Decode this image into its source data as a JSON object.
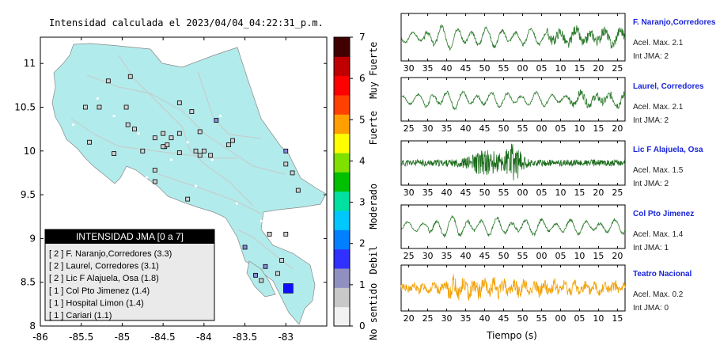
{
  "title": "Intensidad calculada el 2023/04/04_04:22:31_p.m.",
  "chart_data": [
    {
      "type": "map",
      "xlim": [
        -86,
        -82.5
      ],
      "ylim": [
        8,
        11.3
      ],
      "x_ticks": [
        "-86",
        "-85.5",
        "-85",
        "-84.5",
        "-84",
        "-83.5",
        "-83"
      ],
      "y_ticks": [
        "8",
        "8.5",
        "9",
        "9.5",
        "10",
        "10.5",
        "11"
      ],
      "colorbar": {
        "ticks": [
          "0",
          "1",
          "2",
          "3",
          "4",
          "5",
          "6",
          "7"
        ],
        "labels": [
          "No sentido",
          "Debil",
          "Moderado",
          "Fuerte",
          "Muy Fuerte"
        ],
        "colors": [
          "#f2f2f2",
          "#c8c8c8",
          "#9090c0",
          "#3030ff",
          "#0080ff",
          "#00c8ff",
          "#00e0a0",
          "#00c000",
          "#80e000",
          "#ffff00",
          "#ffa000",
          "#ff4000",
          "#ff0000",
          "#c00000",
          "#400000"
        ]
      },
      "stations": [
        {
          "lon": -82.97,
          "lat": 8.43,
          "intensity": 3
        },
        {
          "lon": -83.25,
          "lat": 8.68,
          "intensity": 2
        },
        {
          "lon": -83.37,
          "lat": 8.58,
          "intensity": 2
        },
        {
          "lon": -83.5,
          "lat": 8.9,
          "intensity": 2
        },
        {
          "lon": -83.0,
          "lat": 10.0,
          "intensity": 2
        },
        {
          "lon": -83.85,
          "lat": 10.35,
          "intensity": 2
        },
        {
          "lon": -82.92,
          "lat": 9.75,
          "intensity": 1
        },
        {
          "lon": -83.2,
          "lat": 9.05,
          "intensity": 1
        },
        {
          "lon": -83.3,
          "lat": 8.52,
          "intensity": 1
        },
        {
          "lon": -83.0,
          "lat": 9.85,
          "intensity": 1
        },
        {
          "lon": -84.0,
          "lat": 10.0,
          "intensity": 1
        },
        {
          "lon": -83.92,
          "lat": 9.95,
          "intensity": 1
        },
        {
          "lon": -84.2,
          "lat": 9.45,
          "intensity": 1
        },
        {
          "lon": -84.48,
          "lat": 10.05,
          "intensity": 1
        },
        {
          "lon": -84.3,
          "lat": 9.98,
          "intensity": 1
        },
        {
          "lon": -84.45,
          "lat": 10.07,
          "intensity": 1
        },
        {
          "lon": -84.1,
          "lat": 10.0,
          "intensity": 1
        },
        {
          "lon": -84.05,
          "lat": 10.22,
          "intensity": 1
        },
        {
          "lon": -84.05,
          "lat": 9.95,
          "intensity": 1
        },
        {
          "lon": -83.7,
          "lat": 10.07,
          "intensity": 1
        },
        {
          "lon": -83.65,
          "lat": 10.12,
          "intensity": 1
        },
        {
          "lon": -84.5,
          "lat": 10.05,
          "intensity": 1
        },
        {
          "lon": -84.3,
          "lat": 10.2,
          "intensity": 1
        },
        {
          "lon": -84.6,
          "lat": 10.15,
          "intensity": 1
        },
        {
          "lon": -84.5,
          "lat": 10.2,
          "intensity": 1
        },
        {
          "lon": -84.4,
          "lat": 10.15,
          "intensity": 1
        },
        {
          "lon": -84.75,
          "lat": 10.0,
          "intensity": 1
        },
        {
          "lon": -84.6,
          "lat": 9.78,
          "intensity": 1
        },
        {
          "lon": -84.93,
          "lat": 10.3,
          "intensity": 1
        },
        {
          "lon": -84.95,
          "lat": 10.5,
          "intensity": 1
        },
        {
          "lon": -84.85,
          "lat": 10.25,
          "intensity": 1
        },
        {
          "lon": -85.28,
          "lat": 10.5,
          "intensity": 1
        },
        {
          "lon": -85.45,
          "lat": 10.5,
          "intensity": 1
        },
        {
          "lon": -85.17,
          "lat": 10.8,
          "intensity": 1
        },
        {
          "lon": -84.9,
          "lat": 10.85,
          "intensity": 1
        },
        {
          "lon": -85.1,
          "lat": 9.97,
          "intensity": 1
        },
        {
          "lon": -85.4,
          "lat": 10.1,
          "intensity": 1
        },
        {
          "lon": -84.3,
          "lat": 10.55,
          "intensity": 1
        },
        {
          "lon": -84.15,
          "lat": 10.45,
          "intensity": 1
        },
        {
          "lon": -84.6,
          "lat": 9.65,
          "intensity": 1
        },
        {
          "lon": -83.0,
          "lat": 9.05,
          "intensity": 1
        },
        {
          "lon": -83.05,
          "lat": 8.75,
          "intensity": 1
        },
        {
          "lon": -83.1,
          "lat": 8.6,
          "intensity": 1
        },
        {
          "lon": -82.85,
          "lat": 9.55,
          "intensity": 1
        }
      ],
      "legend": {
        "title": "INTENSIDAD JMA [0 a 7]",
        "items": [
          "[ 2 ]  F. Naranjo,Corredores (3.3)",
          "[ 2 ]  Laurel, Corredores (3.1)",
          "[ 2 ]  Lic F Alajuela, Osa (1.8)",
          "[ 1 ]  Col Pto Jimenez (1.4)",
          "[ 1 ]  Hospital Limon (1.4)",
          "[ 1 ]  Cariari (1.1)"
        ]
      }
    },
    {
      "type": "line",
      "xlabel": "Tiempo (s)",
      "series": [
        {
          "name": "F. Naranjo,Corredores",
          "acel": "Acel. Max. 2.1",
          "int": "Int JMA: 2",
          "color": "#2d7a2d",
          "ticks": [
            "30",
            "35",
            "40",
            "45",
            "50",
            "55",
            "00",
            "05",
            "10",
            "15",
            "20",
            "25"
          ],
          "wave": {
            "seed": 3,
            "amp": 0.85,
            "burst_at": 0.1,
            "noise_from": 0.65
          }
        },
        {
          "name": "Laurel, Corredores",
          "acel": "Acel. Max. 2.1",
          "int": "Int JMA: 2",
          "color": "#2d7a2d",
          "ticks": [
            "25",
            "30",
            "35",
            "40",
            "45",
            "50",
            "55",
            "00",
            "05",
            "10",
            "15",
            "20"
          ],
          "wave": {
            "seed": 7,
            "amp": 0.75,
            "burst_at": 0.1,
            "noise_from": 0.75
          }
        },
        {
          "name": "Lic F Alajuela, Osa",
          "acel": "Acel. Max. 1.5",
          "int": "Int JMA: 2",
          "color": "#1a6b1a",
          "ticks": [
            "30",
            "35",
            "40",
            "45",
            "50",
            "55",
            "00",
            "05",
            "10",
            "15",
            "20",
            "25"
          ],
          "wave": {
            "seed": 11,
            "amp": 0.9,
            "burst_at": 0.5,
            "noise_from": 0.3
          }
        },
        {
          "name": "Col Pto Jimenez",
          "acel": "Acel. Max. 1.4",
          "int": "Int JMA: 1",
          "color": "#2d7a2d",
          "ticks": [
            "25",
            "30",
            "35",
            "40",
            "45",
            "50",
            "55",
            "00",
            "05",
            "10",
            "15",
            "20"
          ],
          "wave": {
            "seed": 5,
            "amp": 0.85,
            "burst_at": 0.12,
            "noise_from": 1.1
          }
        },
        {
          "name": "Teatro Nacional",
          "acel": "Acel. Max. 0.2",
          "int": "Int JMA: 0",
          "color": "#f2a000",
          "ticks": [
            "20",
            "25",
            "30",
            "35",
            "40",
            "45",
            "50",
            "55",
            "00",
            "05",
            "10",
            "15"
          ],
          "wave": {
            "seed": 13,
            "amp": 0.8,
            "burst_at": 0.2,
            "noise_from": 0.0
          }
        }
      ]
    }
  ]
}
